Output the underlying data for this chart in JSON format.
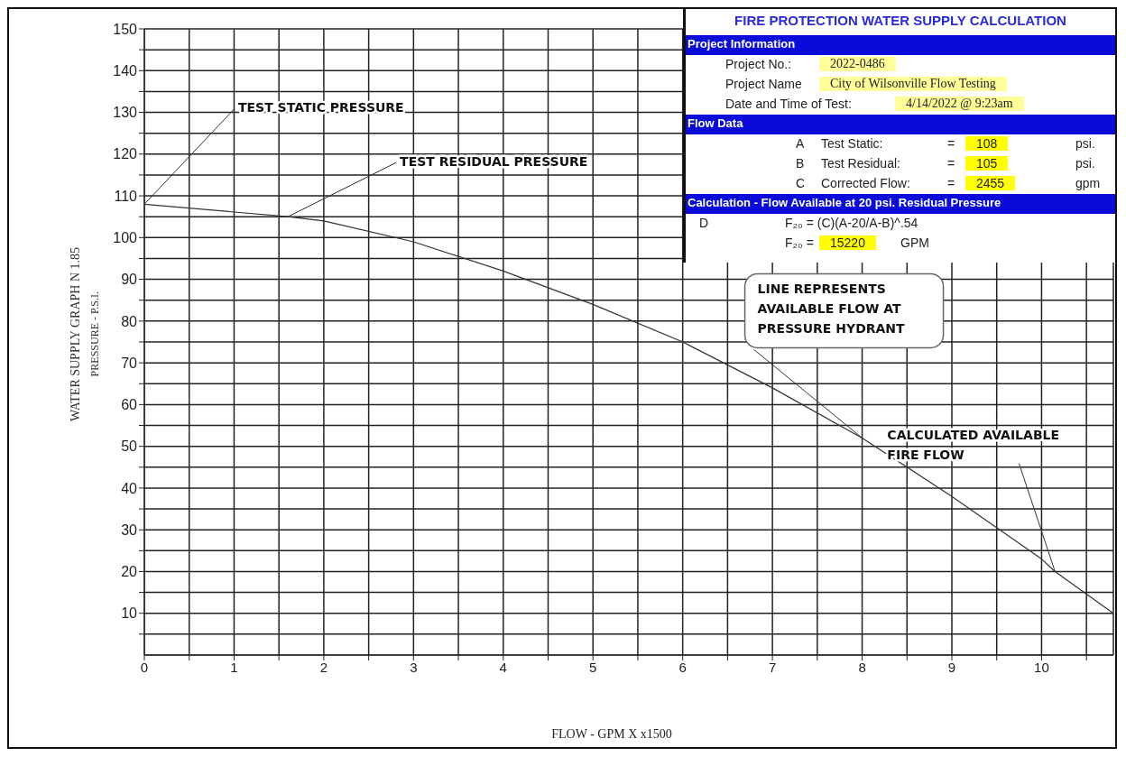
{
  "chart_data": {
    "type": "line",
    "title": "FIRE PROTECTION WATER SUPPLY CALCULATION",
    "subtitle": "WATER SUPPLY GRAPH N 1.85",
    "xlabel": "FLOW - GPM X  x1500",
    "ylabel": "PRESSURE - P.S.I.",
    "x": [
      0,
      1.6,
      2,
      3,
      4,
      5,
      6,
      7,
      8,
      9,
      10,
      10.15,
      10.8
    ],
    "series": [
      {
        "color": "#333333",
        "values": [
          108,
          105,
          104,
          99,
          92,
          84,
          75,
          64,
          52,
          38,
          23,
          20,
          10
        ]
      }
    ],
    "xlim": [
      0,
      10.8
    ],
    "xticks": [
      0,
      {
        "value": 0.5,
        "label": null
      },
      1,
      {
        "value": 1.5,
        "label": null
      },
      2,
      {
        "value": 2.5,
        "label": null
      },
      3,
      {
        "value": 3.5,
        "label": null
      },
      4,
      {
        "value": 4.5,
        "label": null
      },
      5,
      {
        "value": 5.5,
        "label": null
      },
      6,
      {
        "value": 6.5,
        "label": null
      },
      7,
      {
        "value": 7.5,
        "label": null
      },
      8,
      {
        "value": 8.5,
        "label": null
      },
      9,
      {
        "value": 9.5,
        "label": null
      },
      10,
      {
        "value": 10.5,
        "label": null
      }
    ],
    "ylim": [
      0,
      150
    ],
    "yticks": [
      {
        "value": 5,
        "label": null
      },
      10,
      {
        "value": 15,
        "label": null
      },
      20,
      {
        "value": 25,
        "label": null
      },
      30,
      {
        "value": 35,
        "label": null
      },
      40,
      {
        "value": 45,
        "label": null
      },
      50,
      {
        "value": 55,
        "label": null
      },
      60,
      {
        "value": 65,
        "label": null
      },
      70,
      {
        "value": 75,
        "label": null
      },
      80,
      {
        "value": 85,
        "label": null
      },
      90,
      {
        "value": 95,
        "label": null
      },
      100,
      {
        "value": 105,
        "label": null
      },
      110,
      {
        "value": 115,
        "label": null
      },
      120,
      {
        "value": 125,
        "label": null
      },
      130,
      {
        "value": 135,
        "label": null
      },
      140,
      {
        "value": 145,
        "label": null
      },
      150
    ],
    "grid": true,
    "marker": "none",
    "line_style": "solid",
    "annotations": [
      "Project Information",
      "Project No.:",
      "2022-0486",
      "Project Name",
      "City of Wilsonville Flow Testing",
      "Date and Time of Test:",
      "4/14/2022 @ 9:23am",
      "Flow Data",
      "A",
      "Test Static:",
      "=",
      "108",
      "psi.",
      "B",
      "Test Residual:",
      "=",
      "105",
      "psi.",
      "C",
      "Corrected Flow:",
      "=",
      "2455",
      "gpm",
      "Calculation - Flow Available at 20 psi. Residual Pressure",
      "D",
      "F₂₀ = (C)(A-20/A-B)^.54",
      "F₂₀ =",
      "15220",
      "GPM",
      {
        "text": "TEST STATIC PRESSURE",
        "x": 0,
        "y": 108
      },
      {
        "text": "TEST RESIDUAL PRESSURE",
        "x": 1.6,
        "y": 105
      },
      {
        "text": "LINE REPRESENTS AVAILABLE FLOW AT PRESSURE HYDRANT",
        "x": 8,
        "y": 52
      },
      {
        "text": "CALCULATED AVAILABLE FIRE FLOW",
        "x": 10.15,
        "y": 20
      }
    ]
  }
}
